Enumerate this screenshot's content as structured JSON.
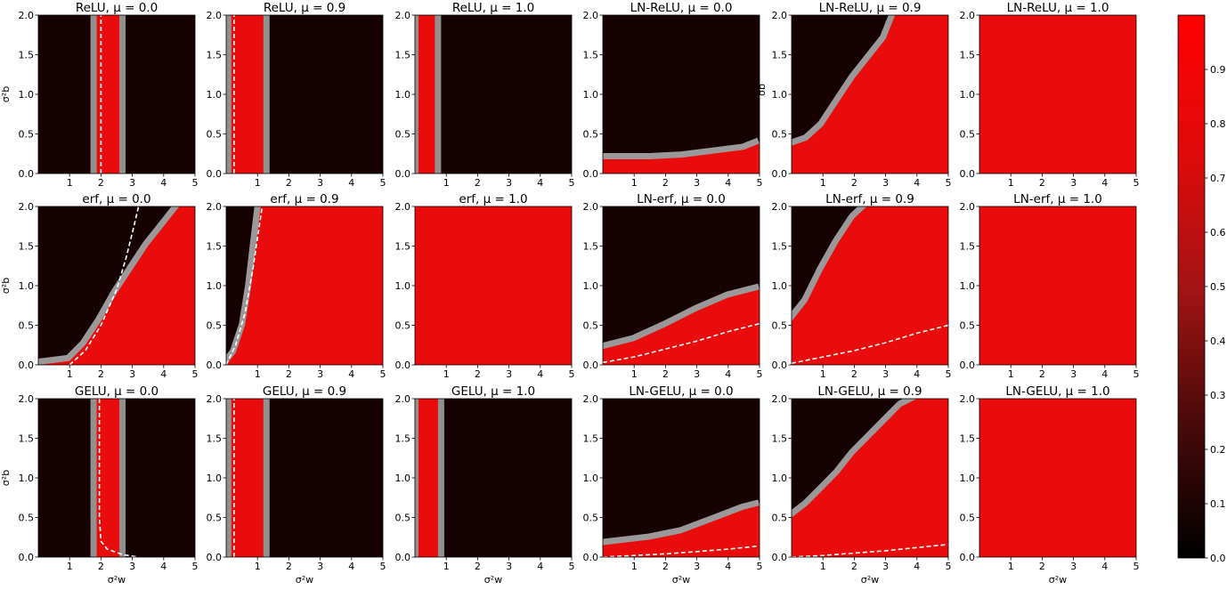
{
  "chart_data": {
    "type": "heatmap",
    "x_range": [
      0,
      5
    ],
    "y_range": [
      0,
      2
    ],
    "x_ticks": [
      1,
      2,
      3,
      4,
      5
    ],
    "y_ticks": [
      0.0,
      0.5,
      1.0,
      1.5,
      2.0
    ],
    "x_tick_labels": [
      "1",
      "2",
      "3",
      "4",
      "5"
    ],
    "y_tick_labels": [
      "0.0",
      "0.5",
      "1.0",
      "1.5",
      "2.0"
    ],
    "x_label": "σ²w",
    "y_label": "σ²b",
    "y_label_partial": "σb",
    "colorbar": {
      "range": [
        0,
        1
      ],
      "ticks": [
        0.0,
        0.1,
        0.2,
        0.3,
        0.4,
        0.5,
        0.6,
        0.7,
        0.8,
        0.9
      ],
      "tick_labels": [
        "0.0",
        "0.1",
        "0.2",
        "0.3",
        "0.4",
        "0.5",
        "0.6",
        "0.7",
        "0.8",
        "0.9"
      ],
      "colors": [
        "#000000",
        "#4a0a0a",
        "#a41414",
        "#e00a0a",
        "#ff0000"
      ]
    },
    "colors": {
      "low": "#160202",
      "high": "#ea0c0c",
      "transition": "#a8a8a8",
      "critical_line": "#ffffff"
    },
    "panels": [
      {
        "title": "ReLU, μ = 0.0",
        "mode": "band",
        "band": [
          1.75,
          2.7
        ],
        "curve": [
          [
            2.0,
            0.0
          ],
          [
            2.0,
            2.0
          ]
        ]
      },
      {
        "title": "ReLU, μ = 0.9",
        "mode": "band",
        "band": [
          0.05,
          1.3
        ],
        "curve": [
          [
            0.25,
            0.0
          ],
          [
            0.25,
            2.0
          ]
        ]
      },
      {
        "title": "ReLU, μ = 1.0",
        "mode": "band",
        "band": [
          0.0,
          0.75
        ],
        "curve": null
      },
      {
        "title": "LN-ReLU, μ = 0.0",
        "mode": "below",
        "boundary": [
          [
            0.0,
            0.18
          ],
          [
            1.5,
            0.18
          ],
          [
            2.5,
            0.2
          ],
          [
            3.5,
            0.25
          ],
          [
            4.5,
            0.3
          ],
          [
            5.0,
            0.38
          ]
        ],
        "curve": null
      },
      {
        "title": "LN-ReLU, μ = 0.9",
        "mode": "below",
        "boundary": [
          [
            0.0,
            0.35
          ],
          [
            0.5,
            0.42
          ],
          [
            1.0,
            0.6
          ],
          [
            1.5,
            0.9
          ],
          [
            2.0,
            1.2
          ],
          [
            2.5,
            1.45
          ],
          [
            3.0,
            1.7
          ],
          [
            3.3,
            2.0
          ],
          [
            5.0,
            2.0
          ]
        ],
        "curve": null
      },
      {
        "title": "LN-ReLU, μ = 1.0",
        "mode": "full",
        "curve": null
      },
      {
        "title": "erf, μ = 0.0",
        "mode": "below",
        "boundary": [
          [
            0.0,
            0.0
          ],
          [
            1.0,
            0.05
          ],
          [
            1.5,
            0.25
          ],
          [
            2.0,
            0.55
          ],
          [
            2.5,
            0.9
          ],
          [
            3.0,
            1.2
          ],
          [
            3.5,
            1.5
          ],
          [
            4.0,
            1.75
          ],
          [
            4.5,
            2.0
          ],
          [
            5.0,
            2.0
          ]
        ],
        "curve": [
          [
            1.0,
            0.0
          ],
          [
            1.5,
            0.18
          ],
          [
            2.0,
            0.5
          ],
          [
            2.5,
            0.95
          ],
          [
            2.8,
            1.35
          ],
          [
            3.05,
            1.75
          ],
          [
            3.2,
            2.0
          ]
        ]
      },
      {
        "title": "erf, μ = 0.9",
        "mode": "below",
        "boundary": [
          [
            0.0,
            0.0
          ],
          [
            0.3,
            0.15
          ],
          [
            0.6,
            0.5
          ],
          [
            0.8,
            1.0
          ],
          [
            0.95,
            1.5
          ],
          [
            1.1,
            2.0
          ],
          [
            5.0,
            2.0
          ]
        ],
        "curve": [
          [
            0.0,
            0.0
          ],
          [
            0.3,
            0.25
          ],
          [
            0.6,
            0.65
          ],
          [
            0.85,
            1.2
          ],
          [
            1.0,
            1.6
          ],
          [
            1.15,
            2.0
          ]
        ]
      },
      {
        "title": "erf, μ = 1.0",
        "mode": "full",
        "curve": null
      },
      {
        "title": "LN-erf, μ = 0.0",
        "mode": "below",
        "boundary": [
          [
            0.0,
            0.2
          ],
          [
            1.0,
            0.3
          ],
          [
            2.0,
            0.48
          ],
          [
            3.0,
            0.68
          ],
          [
            4.0,
            0.85
          ],
          [
            5.0,
            0.95
          ]
        ],
        "curve": [
          [
            0.0,
            0.03
          ],
          [
            1.0,
            0.1
          ],
          [
            2.0,
            0.2
          ],
          [
            3.0,
            0.3
          ],
          [
            4.0,
            0.42
          ],
          [
            5.0,
            0.52
          ]
        ]
      },
      {
        "title": "LN-erf, μ = 0.9",
        "mode": "below",
        "boundary": [
          [
            0.0,
            0.55
          ],
          [
            0.5,
            0.8
          ],
          [
            1.0,
            1.2
          ],
          [
            1.5,
            1.55
          ],
          [
            2.0,
            1.85
          ],
          [
            2.4,
            2.0
          ],
          [
            5.0,
            2.0
          ]
        ],
        "curve": [
          [
            0.0,
            0.02
          ],
          [
            1.0,
            0.1
          ],
          [
            2.0,
            0.18
          ],
          [
            3.0,
            0.28
          ],
          [
            4.0,
            0.4
          ],
          [
            5.0,
            0.5
          ]
        ]
      },
      {
        "title": "LN-erf, μ = 1.0",
        "mode": "full",
        "curve": null
      },
      {
        "title": "GELU, μ = 0.0",
        "mode": "band",
        "band": [
          1.75,
          2.7
        ],
        "curve": [
          [
            1.95,
            2.0
          ],
          [
            1.95,
            0.5
          ],
          [
            2.0,
            0.2
          ],
          [
            2.2,
            0.1
          ],
          [
            2.7,
            0.03
          ],
          [
            3.2,
            0.0
          ]
        ]
      },
      {
        "title": "GELU, μ = 0.9",
        "mode": "band",
        "band": [
          0.05,
          1.3
        ],
        "curve": [
          [
            0.25,
            0.0
          ],
          [
            0.25,
            2.0
          ]
        ]
      },
      {
        "title": "GELU, μ = 1.0",
        "mode": "band",
        "band": [
          0.0,
          0.85
        ],
        "curve": null
      },
      {
        "title": "LN-GELU, μ = 0.0",
        "mode": "below",
        "boundary": [
          [
            0.0,
            0.15
          ],
          [
            1.5,
            0.22
          ],
          [
            2.5,
            0.3
          ],
          [
            3.5,
            0.45
          ],
          [
            4.5,
            0.6
          ],
          [
            5.0,
            0.65
          ]
        ],
        "curve": [
          [
            0.0,
            0.0
          ],
          [
            1.0,
            0.02
          ],
          [
            2.0,
            0.04
          ],
          [
            3.0,
            0.07
          ],
          [
            4.0,
            0.1
          ],
          [
            5.0,
            0.14
          ]
        ]
      },
      {
        "title": "LN-GELU, μ = 0.9",
        "mode": "below",
        "boundary": [
          [
            0.0,
            0.5
          ],
          [
            0.5,
            0.65
          ],
          [
            1.0,
            0.85
          ],
          [
            1.5,
            1.05
          ],
          [
            2.0,
            1.3
          ],
          [
            2.5,
            1.5
          ],
          [
            3.0,
            1.7
          ],
          [
            3.5,
            1.9
          ],
          [
            4.0,
            2.0
          ],
          [
            5.0,
            2.0
          ]
        ],
        "curve": [
          [
            0.0,
            0.0
          ],
          [
            1.0,
            0.02
          ],
          [
            2.0,
            0.05
          ],
          [
            3.0,
            0.08
          ],
          [
            4.0,
            0.12
          ],
          [
            5.0,
            0.16
          ]
        ]
      },
      {
        "title": "LN-GELU, μ = 1.0",
        "mode": "full",
        "curve": null
      }
    ]
  }
}
